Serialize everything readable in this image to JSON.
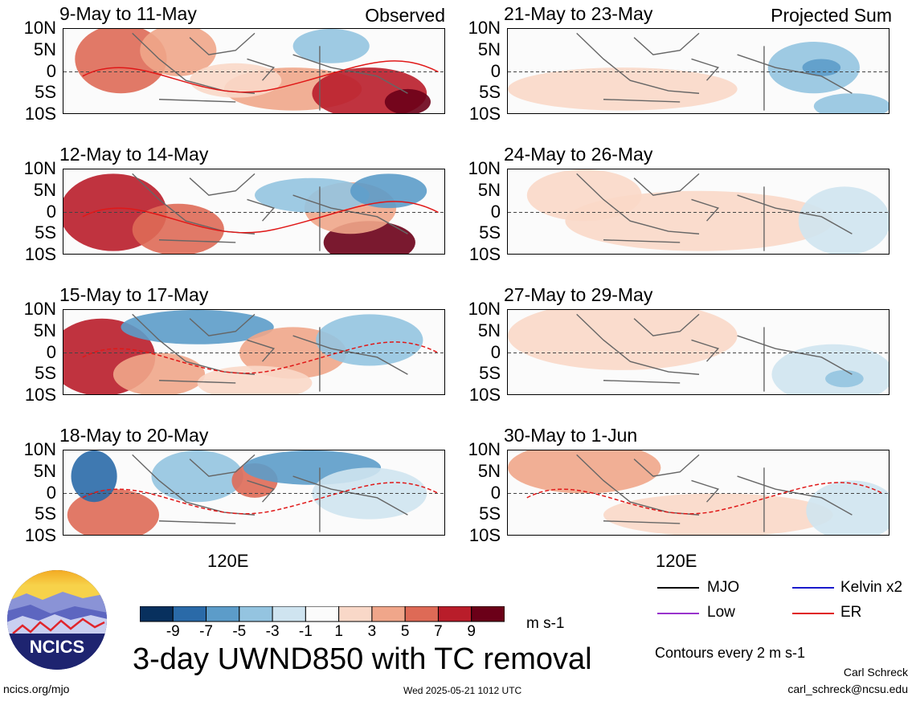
{
  "chart_data": {
    "type": "heatmap",
    "title": "3-day UWND850 with TC removal",
    "units": "m s-1",
    "colorbar": {
      "levels": [
        -9,
        -7,
        -5,
        -3,
        -1,
        1,
        3,
        5,
        7,
        9
      ],
      "colors": [
        "#08305e",
        "#2a6aa8",
        "#5c9cc9",
        "#94c4e0",
        "#cfe4f0",
        "#fbfbfb",
        "#f9d8c8",
        "#f0a68a",
        "#de6a56",
        "#b91d2a",
        "#6b0018"
      ]
    },
    "ylabels": [
      "10N",
      "5N",
      "0",
      "5S",
      "10S"
    ],
    "xlabel": "120E",
    "columns": [
      {
        "label": "Observed",
        "panels": [
          "9-May to 11-May",
          "12-May to 14-May",
          "15-May to 17-May",
          "18-May to 20-May"
        ]
      },
      {
        "label": "Projected Sum",
        "panels": [
          "21-May to 23-May",
          "24-May to 26-May",
          "27-May to 29-May",
          "30-May to 1-Jun"
        ]
      }
    ],
    "legend": {
      "items": [
        {
          "name": "MJO",
          "color": "#000000"
        },
        {
          "name": "Kelvin x2",
          "color": "#1a1acc"
        },
        {
          "name": "Low",
          "color": "#9933cc"
        },
        {
          "name": "ER",
          "color": "#e01818"
        }
      ],
      "note": "Contours every 2 m s-1"
    }
  },
  "logo_text": "NCICS",
  "footer": {
    "left": "ncics.org/mjo",
    "center": "Wed 2025-05-21 1012 UTC",
    "author": "Carl Schreck",
    "email": "carl_schreck@ncsu.edu"
  }
}
